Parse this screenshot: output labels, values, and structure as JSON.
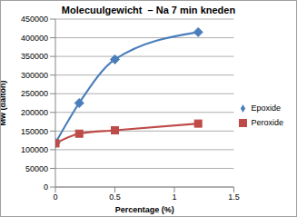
{
  "chart_data": {
    "type": "line",
    "title": "Molecuulgewicht  – Na 7 min kneden",
    "x_label": "Percentage (%)",
    "y_label": "Mw (dalton)",
    "x": [
      0,
      0.2,
      0.5,
      1.2
    ],
    "series": [
      {
        "name": "Epoxide",
        "color": "#4a7ebb",
        "marker": "diamond",
        "line_style": "smooth",
        "values": [
          118000,
          225000,
          342000,
          415000
        ]
      },
      {
        "name": "Peroxide",
        "color": "#be4b48",
        "marker": "square",
        "line_style": "smooth",
        "values": [
          117000,
          143000,
          152000,
          170000
        ]
      }
    ],
    "xlim": [
      0,
      1.5
    ],
    "xticks": [
      0,
      0.5,
      1,
      1.5
    ],
    "ylim": [
      0,
      450000
    ],
    "yticks": [
      0,
      50000,
      100000,
      150000,
      200000,
      250000,
      300000,
      350000,
      400000,
      450000
    ],
    "grid": true,
    "legend": "right"
  }
}
